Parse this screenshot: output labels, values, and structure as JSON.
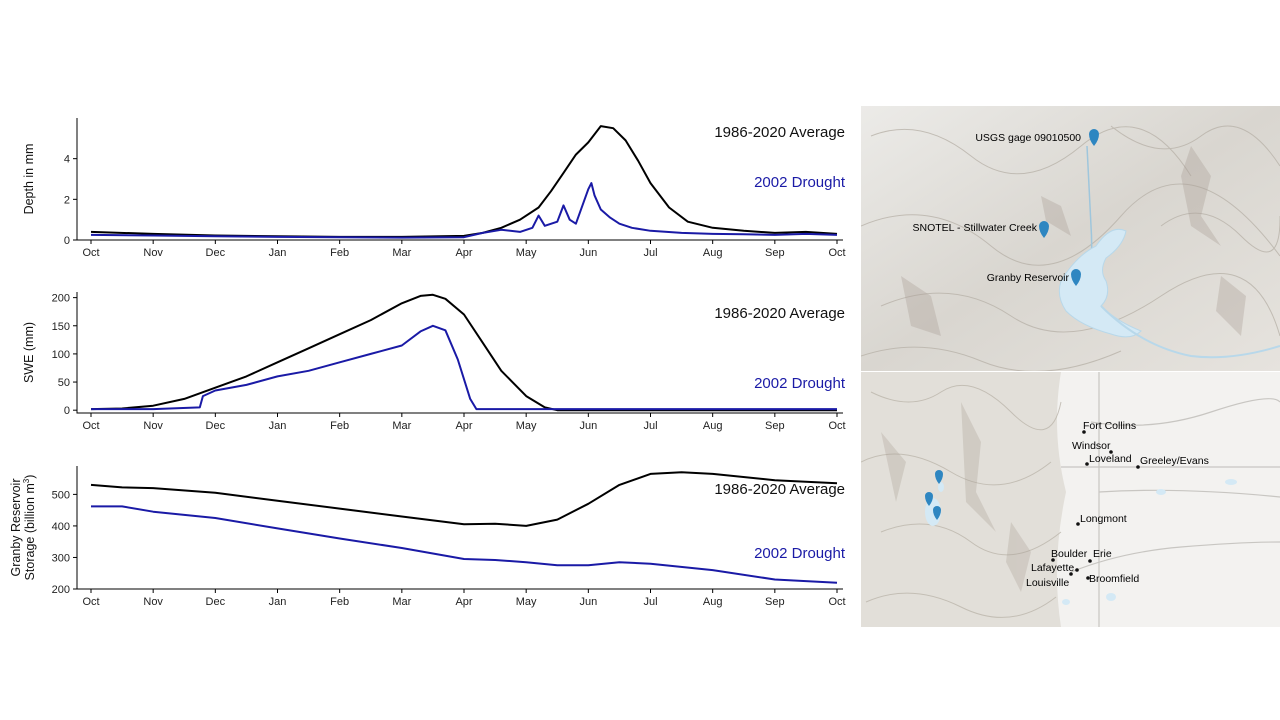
{
  "chart_data": [
    {
      "type": "line",
      "ylabel": "Depth in mm",
      "ylim": [
        0,
        6
      ],
      "yticks": [
        0,
        2,
        4
      ],
      "xticks": [
        "Oct",
        "Nov",
        "Dec",
        "Jan",
        "Feb",
        "Mar",
        "Apr",
        "May",
        "Jun",
        "Jul",
        "Aug",
        "Sep",
        "Oct"
      ],
      "series": [
        {
          "name": "1986-2020 Average",
          "color": "#000000",
          "x": [
            0,
            1,
            2,
            3,
            4,
            5,
            6,
            6.3,
            6.6,
            6.9,
            7.2,
            7.4,
            7.6,
            7.8,
            8.0,
            8.2,
            8.4,
            8.6,
            8.8,
            9.0,
            9.3,
            9.6,
            10.0,
            10.5,
            11.0,
            11.5,
            12.0
          ],
          "y": [
            0.4,
            0.3,
            0.22,
            0.18,
            0.15,
            0.15,
            0.2,
            0.35,
            0.6,
            1.0,
            1.6,
            2.4,
            3.3,
            4.2,
            4.8,
            5.6,
            5.5,
            4.9,
            3.9,
            2.8,
            1.6,
            0.9,
            0.6,
            0.45,
            0.35,
            0.4,
            0.3
          ]
        },
        {
          "name": "2002 Drought",
          "color": "#1a1aa6",
          "x": [
            0,
            1,
            2,
            3,
            4,
            5,
            6,
            6.3,
            6.6,
            6.9,
            7.1,
            7.2,
            7.3,
            7.5,
            7.6,
            7.7,
            7.8,
            8.0,
            8.05,
            8.1,
            8.2,
            8.35,
            8.5,
            8.7,
            9.0,
            9.5,
            10.0,
            10.5,
            11.0,
            11.5,
            12.0
          ],
          "y": [
            0.25,
            0.22,
            0.18,
            0.15,
            0.14,
            0.12,
            0.14,
            0.35,
            0.5,
            0.4,
            0.6,
            1.2,
            0.7,
            0.9,
            1.7,
            1.0,
            0.8,
            2.5,
            2.8,
            2.2,
            1.5,
            1.1,
            0.8,
            0.6,
            0.45,
            0.35,
            0.3,
            0.28,
            0.25,
            0.3,
            0.25
          ]
        }
      ],
      "annotations": [
        "1986-2020 Average",
        "2002 Drought"
      ]
    },
    {
      "type": "line",
      "ylabel": "SWE (mm)",
      "ylim": [
        -5,
        210
      ],
      "yticks": [
        0,
        50,
        100,
        150,
        200
      ],
      "xticks": [
        "Oct",
        "Nov",
        "Dec",
        "Jan",
        "Feb",
        "Mar",
        "Apr",
        "May",
        "Jun",
        "Jul",
        "Aug",
        "Sep",
        "Oct"
      ],
      "series": [
        {
          "name": "1986-2020 Average",
          "color": "#000000",
          "x": [
            0,
            0.5,
            1,
            1.5,
            2,
            2.5,
            3,
            3.5,
            4,
            4.5,
            5,
            5.3,
            5.5,
            5.7,
            6,
            6.3,
            6.6,
            7,
            7.3,
            7.5,
            8,
            12
          ],
          "y": [
            2,
            3,
            8,
            20,
            40,
            60,
            85,
            110,
            135,
            160,
            190,
            203,
            205,
            198,
            170,
            120,
            70,
            25,
            5,
            0,
            0,
            0
          ]
        },
        {
          "name": "2002 Drought",
          "color": "#1a1aa6",
          "x": [
            0,
            1,
            1.75,
            1.8,
            2,
            2.5,
            3,
            3.5,
            4,
            4.5,
            5,
            5.3,
            5.5,
            5.7,
            5.9,
            6.1,
            6.2,
            6.4,
            12
          ],
          "y": [
            2,
            2,
            5,
            25,
            35,
            45,
            60,
            70,
            85,
            100,
            115,
            140,
            150,
            142,
            90,
            20,
            2,
            2,
            2
          ]
        }
      ],
      "annotations": [
        "1986-2020 Average",
        "2002 Drought"
      ]
    },
    {
      "type": "line",
      "ylabel": "Granby Reservoir Storage (billion m",
      "ylabel_sup": "3",
      "ylabel_close": ")",
      "ylim": [
        200,
        590
      ],
      "yticks": [
        200,
        300,
        400,
        500
      ],
      "xticks": [
        "Oct",
        "Nov",
        "Dec",
        "Jan",
        "Feb",
        "Mar",
        "Apr",
        "May",
        "Jun",
        "Jul",
        "Aug",
        "Sep",
        "Oct"
      ],
      "series": [
        {
          "name": "1986-2020 Average",
          "color": "#000000",
          "x": [
            0,
            0.5,
            1,
            2,
            3,
            4,
            5,
            6,
            6.5,
            7,
            7.5,
            8,
            8.5,
            9,
            9.5,
            10,
            11,
            12
          ],
          "y": [
            530,
            522,
            520,
            505,
            480,
            455,
            430,
            405,
            407,
            400,
            420,
            470,
            530,
            565,
            570,
            565,
            545,
            535
          ]
        },
        {
          "name": "2002 Drought",
          "color": "#1a1aa6",
          "x": [
            0,
            0.5,
            1,
            2,
            3,
            4,
            5,
            6,
            6.5,
            7,
            7.5,
            8,
            8.5,
            9,
            10,
            11,
            12
          ],
          "y": [
            462,
            462,
            445,
            425,
            392,
            360,
            330,
            295,
            292,
            285,
            275,
            275,
            285,
            280,
            260,
            230,
            220
          ]
        }
      ],
      "annotations": [
        "1986-2020 Average",
        "2002 Drought"
      ]
    }
  ],
  "maps": {
    "top_labels": [
      "USGS gage 09010500",
      "SNOTEL - Stillwater Creek",
      "Granby Reservoir"
    ],
    "bottom_labels": [
      "Fort Collins",
      "Windsor",
      "Loveland",
      "Greeley/Evans",
      "Longmont",
      "Boulder",
      "Erie",
      "Lafayette",
      "Broomfield",
      "Louisville"
    ],
    "marker_color": "#2e86c1",
    "water_color": "#d4e9f5"
  }
}
